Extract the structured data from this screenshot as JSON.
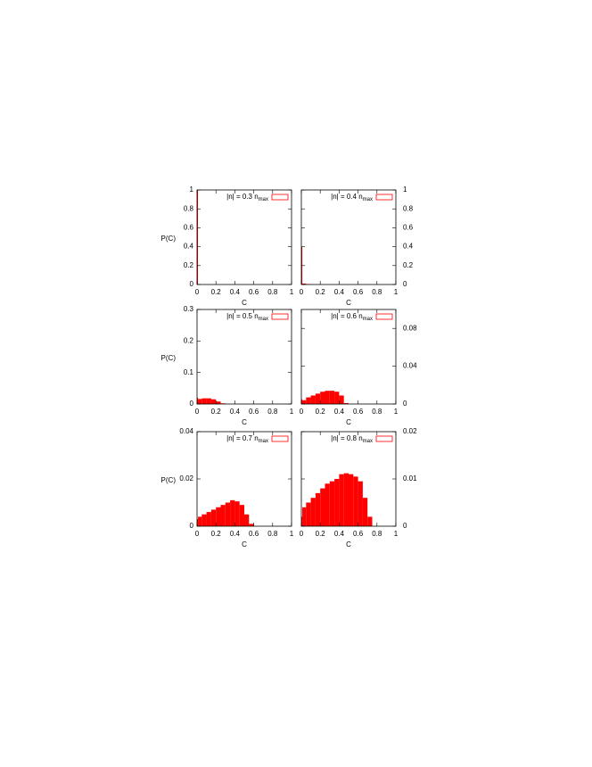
{
  "chart_data": [
    {
      "type": "histogram",
      "xlabel": "C",
      "ylabel": "P(C)",
      "y_axis_side": "left",
      "xlim": [
        0,
        1
      ],
      "xticks": [
        0,
        0.2,
        0.4,
        0.6,
        0.8,
        1
      ],
      "ylim": [
        0,
        1
      ],
      "yticks": [
        0,
        0.2,
        0.4,
        0.6,
        0.8,
        1
      ],
      "bins": [
        0,
        0.01,
        0.05,
        0.1,
        0.15,
        0.2,
        0.25,
        0.3,
        0.35,
        0.4,
        0.45,
        0.5,
        0.55,
        0.6,
        0.65,
        0.7,
        0.75,
        0.8,
        0.85,
        0.9,
        0.95,
        1
      ],
      "series": [
        {
          "name": "|n| = 0.3 n",
          "name_sub": "max",
          "color": "#ff0000",
          "values": [
            1,
            0,
            0,
            0,
            0,
            0,
            0,
            0,
            0,
            0,
            0,
            0,
            0,
            0,
            0,
            0,
            0,
            0,
            0,
            0,
            0
          ]
        }
      ]
    },
    {
      "type": "histogram",
      "xlabel": "C",
      "y_axis_side": "right",
      "xlim": [
        0,
        1
      ],
      "xticks": [
        0,
        0.2,
        0.4,
        0.6,
        0.8,
        1
      ],
      "ylim": [
        0,
        1
      ],
      "yticks": [
        0,
        0.2,
        0.4,
        0.6,
        0.8,
        1
      ],
      "bins": [
        0,
        0.01,
        0.05,
        0.1,
        0.15,
        0.2,
        0.25,
        0.3,
        0.35,
        0.4,
        0.45,
        0.5,
        0.55,
        0.6,
        0.65,
        0.7,
        0.75,
        0.8,
        0.85,
        0.9,
        0.95,
        1
      ],
      "series": [
        {
          "name": "|n| = 0.4 n",
          "name_sub": "max",
          "color": "#ff0000",
          "values": [
            0.4,
            0.01,
            0.004,
            0,
            0,
            0,
            0,
            0,
            0,
            0,
            0,
            0,
            0,
            0,
            0,
            0,
            0,
            0,
            0,
            0,
            0
          ]
        }
      ]
    },
    {
      "type": "histogram",
      "xlabel": "C",
      "ylabel": "P(C)",
      "y_axis_side": "left",
      "xlim": [
        0,
        1
      ],
      "xticks": [
        0,
        0.2,
        0.4,
        0.6,
        0.8,
        1
      ],
      "ylim": [
        0,
        0.3
      ],
      "yticks": [
        0,
        0.1,
        0.2,
        0.3
      ],
      "bins": [
        0,
        0.01,
        0.05,
        0.1,
        0.15,
        0.2,
        0.25,
        0.3,
        0.35,
        0.4,
        0.45,
        0.5,
        0.55,
        0.6,
        0.65,
        0.7,
        0.75,
        0.8,
        0.85,
        0.9,
        0.95,
        1
      ],
      "series": [
        {
          "name": "|n| = 0.5 n",
          "name_sub": "max",
          "color": "#ff0000",
          "values": [
            0.02,
            0.016,
            0.018,
            0.018,
            0.015,
            0.008,
            0.002,
            0,
            0,
            0,
            0,
            0,
            0,
            0,
            0,
            0,
            0,
            0,
            0,
            0,
            0
          ]
        }
      ]
    },
    {
      "type": "histogram",
      "xlabel": "C",
      "y_axis_side": "right",
      "xlim": [
        0,
        1
      ],
      "xticks": [
        0,
        0.2,
        0.4,
        0.6,
        0.8,
        1
      ],
      "ylim": [
        0,
        0.1
      ],
      "yticks": [
        0,
        0.04,
        0.08
      ],
      "bins": [
        0,
        0.01,
        0.05,
        0.1,
        0.15,
        0.2,
        0.25,
        0.3,
        0.35,
        0.4,
        0.45,
        0.5,
        0.55,
        0.6,
        0.65,
        0.7,
        0.75,
        0.8,
        0.85,
        0.9,
        0.95,
        1
      ],
      "series": [
        {
          "name": "|n| = 0.6 n",
          "name_sub": "max",
          "color": "#ff0000",
          "values": [
            0.005,
            0.004,
            0.007,
            0.009,
            0.011,
            0.013,
            0.014,
            0.014,
            0.013,
            0.009,
            0.001,
            0,
            0,
            0,
            0,
            0,
            0,
            0,
            0,
            0,
            0
          ]
        }
      ]
    },
    {
      "type": "histogram",
      "xlabel": "C",
      "ylabel": "P(C)",
      "y_axis_side": "left",
      "xlim": [
        0,
        1
      ],
      "xticks": [
        0,
        0.2,
        0.4,
        0.6,
        0.8,
        1
      ],
      "ylim": [
        0,
        0.04
      ],
      "yticks": [
        0,
        0.02,
        0.04
      ],
      "bins": [
        0,
        0.01,
        0.05,
        0.1,
        0.15,
        0.2,
        0.25,
        0.3,
        0.35,
        0.4,
        0.45,
        0.5,
        0.55,
        0.6,
        0.65,
        0.7,
        0.75,
        0.8,
        0.85,
        0.9,
        0.95,
        1
      ],
      "series": [
        {
          "name": "|n| = 0.7 n",
          "name_sub": "max",
          "color": "#ff0000",
          "values": [
            0.003,
            0.004,
            0.005,
            0.006,
            0.007,
            0.008,
            0.009,
            0.01,
            0.011,
            0.0105,
            0.009,
            0.005,
            0.001,
            0,
            0,
            0,
            0,
            0,
            0,
            0,
            0
          ]
        }
      ]
    },
    {
      "type": "histogram",
      "xlabel": "C",
      "y_axis_side": "right",
      "xlim": [
        0,
        1
      ],
      "xticks": [
        0,
        0.2,
        0.4,
        0.6,
        0.8,
        1
      ],
      "ylim": [
        0,
        0.02
      ],
      "yticks": [
        0,
        0.01,
        0.02
      ],
      "bins": [
        0,
        0.01,
        0.05,
        0.1,
        0.15,
        0.2,
        0.25,
        0.3,
        0.35,
        0.4,
        0.45,
        0.5,
        0.55,
        0.6,
        0.65,
        0.7,
        0.75,
        0.8,
        0.85,
        0.9,
        0.95,
        1
      ],
      "series": [
        {
          "name": "|n| = 0.8 n",
          "name_sub": "max",
          "color": "#ff0000",
          "values": [
            0.002,
            0.004,
            0.005,
            0.006,
            0.007,
            0.008,
            0.009,
            0.0095,
            0.01,
            0.011,
            0.0112,
            0.011,
            0.0105,
            0.0095,
            0.006,
            0.002,
            0,
            0,
            0,
            0,
            0
          ]
        }
      ]
    }
  ]
}
